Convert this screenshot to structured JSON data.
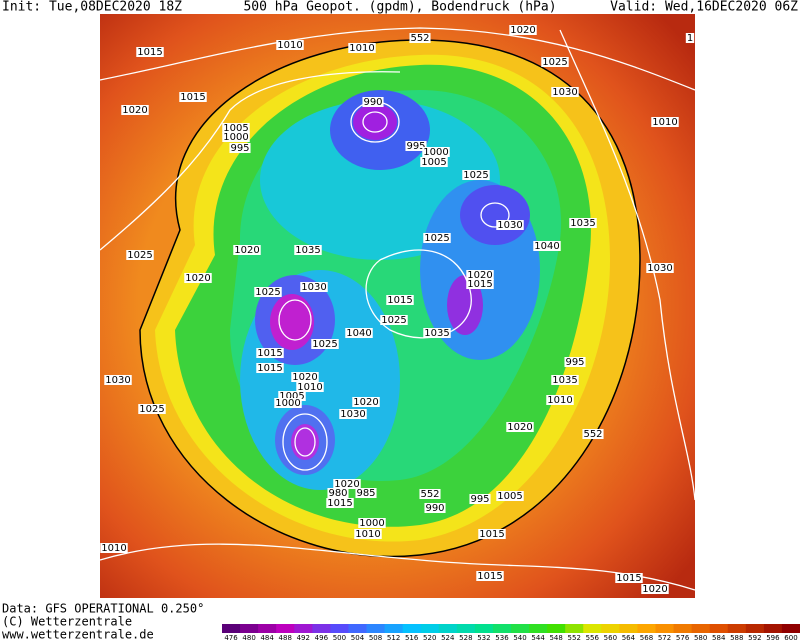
{
  "header": {
    "init": "Init: Tue,08DEC2020 18Z",
    "title": "500 hPa Geopot. (gpdm), Bodendruck (hPa)",
    "valid": "Valid: Wed,16DEC2020 06Z"
  },
  "isobar_labels": [
    "1015",
    "1010",
    "1010",
    "552",
    "1020",
    "1025",
    "1030",
    "1",
    "1015",
    "1020",
    "990",
    "1005",
    "1000",
    "995",
    "995",
    "1000",
    "1005",
    "1010",
    "1025",
    "1030",
    "1035",
    "1040",
    "1025",
    "1035",
    "1020",
    "1025",
    "1020",
    "1020",
    "1015",
    "1030",
    "1025",
    "1030",
    "1025",
    "1040",
    "1035",
    "1025",
    "1015",
    "1015",
    "1020",
    "1010",
    "1005",
    "1000",
    "995",
    "1035",
    "1030",
    "1010",
    "1025",
    "1020",
    "1030",
    "1020",
    "552",
    "1020",
    "980",
    "985",
    "552",
    "995",
    "1005",
    "1015",
    "990",
    "1000",
    "1010",
    "1015",
    "1010",
    "1015",
    "1015",
    "1020",
    "1015"
  ],
  "colorbar": {
    "ticks": [
      476,
      480,
      484,
      488,
      492,
      496,
      500,
      504,
      508,
      512,
      516,
      520,
      524,
      528,
      532,
      536,
      540,
      544,
      548,
      552,
      556,
      560,
      564,
      568,
      572,
      576,
      580,
      584,
      588,
      592,
      596,
      600
    ]
  },
  "footer": {
    "data": "Data: GFS OPERATIONAL 0.250°",
    "copyright": "(C) Wetterzentrale",
    "url": "www.wetterzentrale.de"
  }
}
